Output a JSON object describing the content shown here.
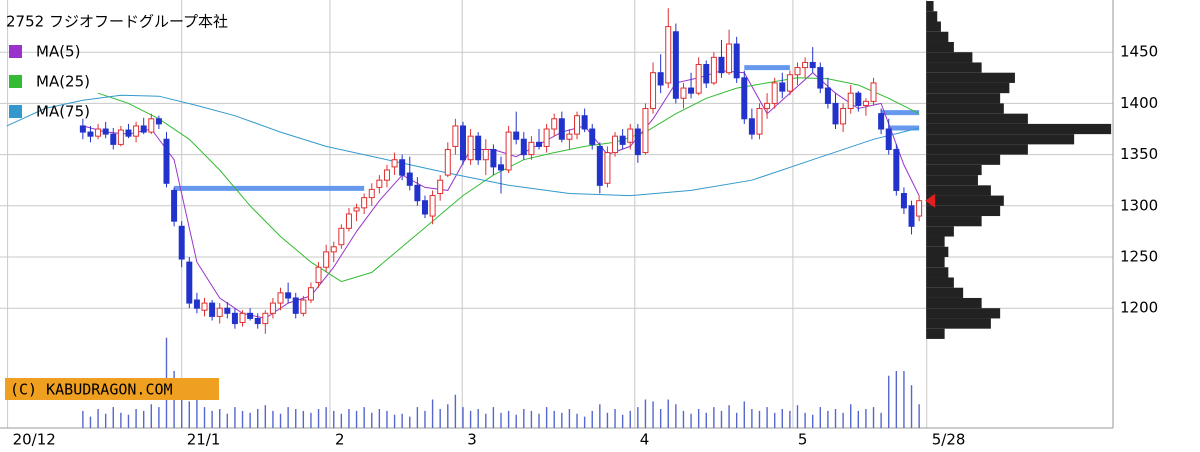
{
  "chart_data": {
    "type": "candlestick",
    "title": "2752 フジオフードグループ本社",
    "copyright": "(C) KABUDRAGON.COM",
    "ylim": [
      1083,
      1501
    ],
    "yticks": [
      1200,
      1250,
      1300,
      1350,
      1400,
      1450
    ],
    "xlim": [
      -10.9,
      135.5
    ],
    "xticks": [
      {
        "value": -9.9,
        "label": "20/12"
      },
      {
        "value": 13,
        "label": "21/1"
      },
      {
        "value": 32.5,
        "label": "2"
      },
      {
        "value": 49.9,
        "label": "3"
      },
      {
        "value": 72.6,
        "label": "4"
      },
      {
        "value": 93.4,
        "label": "5"
      },
      {
        "value": 111,
        "label": "5/28"
      }
    ],
    "grid": true,
    "up_color": "#e03030",
    "down_color": "#2233cc",
    "ohlc": [
      [
        1378,
        1385,
        1365,
        1372
      ],
      [
        1372,
        1378,
        1362,
        1368
      ],
      [
        1368,
        1380,
        1365,
        1375
      ],
      [
        1375,
        1382,
        1366,
        1370
      ],
      [
        1370,
        1376,
        1355,
        1360
      ],
      [
        1360,
        1378,
        1358,
        1374
      ],
      [
        1374,
        1380,
        1366,
        1368
      ],
      [
        1368,
        1382,
        1362,
        1378
      ],
      [
        1378,
        1386,
        1370,
        1372
      ],
      [
        1372,
        1390,
        1370,
        1385
      ],
      [
        1385,
        1388,
        1375,
        1380
      ],
      [
        1365,
        1372,
        1318,
        1322
      ],
      [
        1315,
        1318,
        1280,
        1285
      ],
      [
        1280,
        1285,
        1240,
        1248
      ],
      [
        1245,
        1250,
        1200,
        1205
      ],
      [
        1208,
        1215,
        1195,
        1200
      ],
      [
        1198,
        1210,
        1192,
        1205
      ],
      [
        1205,
        1208,
        1188,
        1192
      ],
      [
        1192,
        1205,
        1185,
        1200
      ],
      [
        1200,
        1206,
        1190,
        1195
      ],
      [
        1195,
        1200,
        1180,
        1185
      ],
      [
        1186,
        1198,
        1182,
        1195
      ],
      [
        1195,
        1200,
        1188,
        1190
      ],
      [
        1190,
        1195,
        1180,
        1185
      ],
      [
        1185,
        1198,
        1175,
        1195
      ],
      [
        1195,
        1210,
        1190,
        1205
      ],
      [
        1205,
        1220,
        1198,
        1215
      ],
      [
        1215,
        1225,
        1205,
        1210
      ],
      [
        1210,
        1215,
        1190,
        1195
      ],
      [
        1195,
        1212,
        1192,
        1208
      ],
      [
        1208,
        1225,
        1205,
        1220
      ],
      [
        1225,
        1245,
        1220,
        1240
      ],
      [
        1240,
        1262,
        1235,
        1255
      ],
      [
        1255,
        1265,
        1245,
        1260
      ],
      [
        1262,
        1282,
        1258,
        1278
      ],
      [
        1278,
        1298,
        1275,
        1292
      ],
      [
        1295,
        1302,
        1285,
        1298
      ],
      [
        1298,
        1312,
        1292,
        1308
      ],
      [
        1308,
        1322,
        1300,
        1316
      ],
      [
        1318,
        1330,
        1312,
        1325
      ],
      [
        1325,
        1340,
        1318,
        1335
      ],
      [
        1338,
        1352,
        1330,
        1345
      ],
      [
        1345,
        1350,
        1325,
        1330
      ],
      [
        1332,
        1348,
        1315,
        1320
      ],
      [
        1320,
        1328,
        1300,
        1305
      ],
      [
        1305,
        1310,
        1288,
        1292
      ],
      [
        1290,
        1315,
        1282,
        1310
      ],
      [
        1312,
        1330,
        1305,
        1325
      ],
      [
        1330,
        1362,
        1328,
        1355
      ],
      [
        1358,
        1385,
        1350,
        1378
      ],
      [
        1378,
        1382,
        1340,
        1345
      ],
      [
        1345,
        1375,
        1340,
        1368
      ],
      [
        1368,
        1372,
        1340,
        1345
      ],
      [
        1345,
        1365,
        1330,
        1355
      ],
      [
        1355,
        1360,
        1330,
        1338
      ],
      [
        1340,
        1348,
        1312,
        1335
      ],
      [
        1335,
        1378,
        1332,
        1372
      ],
      [
        1372,
        1392,
        1360,
        1365
      ],
      [
        1365,
        1372,
        1345,
        1350
      ],
      [
        1350,
        1368,
        1345,
        1362
      ],
      [
        1362,
        1375,
        1355,
        1358
      ],
      [
        1358,
        1380,
        1352,
        1375
      ],
      [
        1375,
        1390,
        1368,
        1385
      ],
      [
        1385,
        1392,
        1362,
        1365
      ],
      [
        1365,
        1375,
        1355,
        1370
      ],
      [
        1370,
        1392,
        1365,
        1388
      ],
      [
        1388,
        1395,
        1372,
        1375
      ],
      [
        1375,
        1380,
        1355,
        1360
      ],
      [
        1358,
        1362,
        1312,
        1320
      ],
      [
        1322,
        1358,
        1318,
        1352
      ],
      [
        1352,
        1372,
        1348,
        1368
      ],
      [
        1368,
        1375,
        1355,
        1360
      ],
      [
        1362,
        1380,
        1355,
        1375
      ],
      [
        1375,
        1380,
        1342,
        1350
      ],
      [
        1352,
        1400,
        1350,
        1395
      ],
      [
        1395,
        1440,
        1390,
        1430
      ],
      [
        1430,
        1448,
        1410,
        1418
      ],
      [
        1420,
        1493,
        1415,
        1475
      ],
      [
        1470,
        1478,
        1400,
        1405
      ],
      [
        1405,
        1420,
        1395,
        1415
      ],
      [
        1415,
        1430,
        1405,
        1410
      ],
      [
        1410,
        1445,
        1408,
        1438
      ],
      [
        1438,
        1442,
        1415,
        1420
      ],
      [
        1420,
        1450,
        1418,
        1445
      ],
      [
        1445,
        1462,
        1425,
        1430
      ],
      [
        1430,
        1472,
        1428,
        1458
      ],
      [
        1458,
        1465,
        1420,
        1425
      ],
      [
        1425,
        1432,
        1380,
        1385
      ],
      [
        1385,
        1395,
        1365,
        1370
      ],
      [
        1370,
        1400,
        1365,
        1395
      ],
      [
        1395,
        1410,
        1385,
        1400
      ],
      [
        1400,
        1425,
        1395,
        1420
      ],
      [
        1420,
        1430,
        1405,
        1412
      ],
      [
        1412,
        1432,
        1408,
        1428
      ],
      [
        1428,
        1440,
        1418,
        1435
      ],
      [
        1435,
        1445,
        1425,
        1440
      ],
      [
        1440,
        1455,
        1430,
        1435
      ],
      [
        1435,
        1440,
        1410,
        1415
      ],
      [
        1415,
        1425,
        1395,
        1400
      ],
      [
        1400,
        1410,
        1375,
        1380
      ],
      [
        1380,
        1400,
        1372,
        1395
      ],
      [
        1395,
        1418,
        1390,
        1410
      ],
      [
        1410,
        1412,
        1392,
        1398
      ],
      [
        1398,
        1405,
        1388,
        1402
      ],
      [
        1402,
        1425,
        1398,
        1420
      ],
      [
        1390,
        1395,
        1370,
        1375
      ],
      [
        1375,
        1385,
        1350,
        1355
      ],
      [
        1355,
        1360,
        1310,
        1315
      ],
      [
        1312,
        1318,
        1292,
        1298
      ],
      [
        1300,
        1305,
        1272,
        1280
      ],
      [
        1290,
        1310,
        1285,
        1305
      ]
    ],
    "series": [
      {
        "name": "MA(5)",
        "color": "#9933cc",
        "x": [
          0,
          3,
          6,
          9,
          12,
          15,
          18,
          21,
          24,
          27,
          30,
          33,
          36,
          39,
          42,
          45,
          48,
          51,
          54,
          57,
          60,
          63,
          66,
          69,
          72,
          75,
          78,
          81,
          84,
          87,
          90,
          93,
          96,
          99,
          102,
          105,
          108,
          110
        ],
        "values": [
          1378,
          1372,
          1370,
          1375,
          1345,
          1245,
          1210,
          1195,
          1190,
          1205,
          1212,
          1240,
          1275,
          1305,
          1330,
          1318,
          1315,
          1355,
          1355,
          1348,
          1360,
          1372,
          1378,
          1350,
          1358,
          1385,
          1420,
          1425,
          1432,
          1430,
          1390,
          1410,
          1430,
          1410,
          1395,
          1400,
          1340,
          1310
        ]
      },
      {
        "name": "MA(25)",
        "color": "#33bb33",
        "x": [
          2,
          6,
          10,
          14,
          18,
          22,
          26,
          30,
          34,
          38,
          42,
          46,
          50,
          54,
          58,
          62,
          66,
          70,
          74,
          78,
          82,
          86,
          90,
          94,
          98,
          102,
          106,
          110
        ],
        "values": [
          1410,
          1400,
          1385,
          1365,
          1335,
          1300,
          1270,
          1245,
          1226,
          1235,
          1260,
          1285,
          1310,
          1330,
          1345,
          1352,
          1358,
          1362,
          1372,
          1390,
          1405,
          1415,
          1420,
          1425,
          1424,
          1418,
          1405,
          1390
        ]
      },
      {
        "name": "MA(75)",
        "color": "#3399cc",
        "x": [
          -10,
          -5,
          0,
          5,
          10,
          15,
          20,
          26,
          32,
          40,
          48,
          56,
          64,
          72,
          80,
          88,
          96,
          104,
          110
        ],
        "values": [
          1378,
          1395,
          1403,
          1408,
          1407,
          1398,
          1388,
          1372,
          1358,
          1345,
          1332,
          1320,
          1312,
          1310,
          1315,
          1325,
          1345,
          1365,
          1376
        ]
      }
    ],
    "levels": [
      {
        "value": 1317,
        "x": [
          12,
          37
        ]
      },
      {
        "value": 1435,
        "x": [
          87,
          93
        ]
      },
      {
        "value": 1391,
        "x": [
          105,
          110
        ]
      },
      {
        "value": 1376,
        "x": [
          106,
          110
        ]
      }
    ],
    "level_color": "#6699ee",
    "volume": {
      "color": "#5566cc",
      "vlim": [
        0,
        100
      ],
      "values": [
        18,
        12,
        20,
        15,
        22,
        16,
        14,
        20,
        18,
        25,
        22,
        95,
        60,
        40,
        28,
        30,
        22,
        18,
        20,
        15,
        22,
        18,
        16,
        20,
        24,
        18,
        15,
        22,
        20,
        18,
        16,
        20,
        22,
        18,
        15,
        20,
        18,
        22,
        16,
        20,
        18,
        14,
        15,
        12,
        22,
        18,
        30,
        20,
        25,
        35,
        22,
        18,
        20,
        15,
        22,
        16,
        18,
        14,
        20,
        18,
        15,
        22,
        18,
        16,
        20,
        15,
        12,
        18,
        25,
        16,
        20,
        14,
        18,
        22,
        30,
        28,
        20,
        30,
        25,
        18,
        15,
        20,
        16,
        22,
        18,
        24,
        16,
        28,
        20,
        18,
        22,
        16,
        20,
        18,
        24,
        16,
        14,
        22,
        18,
        20,
        16,
        25,
        18,
        20,
        22,
        16,
        55,
        60,
        60,
        45,
        25
      ]
    },
    "profile": {
      "color": "#222222",
      "plim": [
        0,
        100
      ],
      "bins": [
        1170,
        1180,
        1190,
        1200,
        1210,
        1220,
        1230,
        1240,
        1250,
        1260,
        1270,
        1280,
        1290,
        1300,
        1310,
        1320,
        1330,
        1340,
        1350,
        1360,
        1370,
        1380,
        1390,
        1400,
        1410,
        1420,
        1430,
        1440,
        1450,
        1460,
        1470,
        1480,
        1490,
        1500
      ],
      "values": [
        10,
        35,
        40,
        30,
        20,
        15,
        12,
        10,
        12,
        10,
        15,
        30,
        40,
        42,
        35,
        28,
        30,
        40,
        55,
        80,
        100,
        55,
        42,
        40,
        45,
        48,
        30,
        25,
        15,
        12,
        8,
        6,
        4
      ]
    },
    "marker_color": "#e02020"
  }
}
